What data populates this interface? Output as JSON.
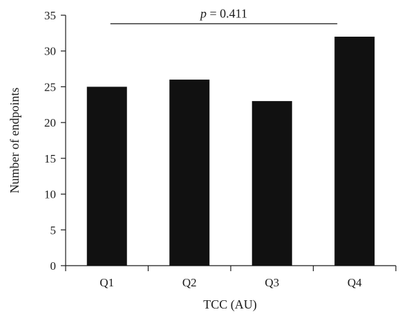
{
  "chart_data": {
    "type": "bar",
    "categories": [
      "Q1",
      "Q2",
      "Q3",
      "Q4"
    ],
    "values": [
      25,
      26,
      23,
      32
    ],
    "xlabel": "TCC (AU)",
    "ylabel": "Number of endpoints",
    "ylim": [
      0,
      35
    ],
    "yticks": [
      0,
      5,
      10,
      15,
      20,
      25,
      30,
      35
    ],
    "grid": false,
    "bar_color": "#111111",
    "annotation": {
      "p_symbol": "p",
      "p_rest": " = 0.411",
      "spans_categories": [
        "Q1",
        "Q4"
      ],
      "line_y": 33.8
    }
  }
}
